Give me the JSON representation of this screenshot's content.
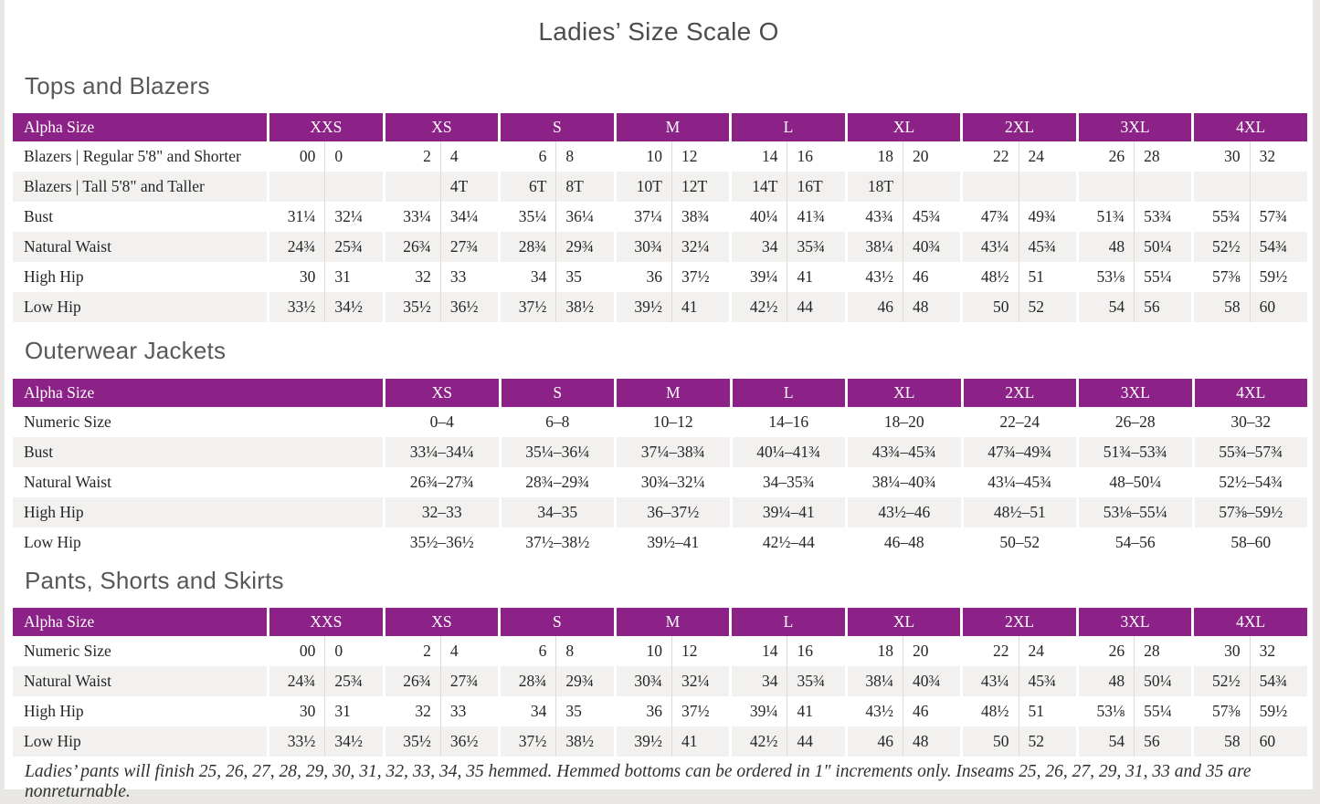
{
  "title": "Ladies’ Size Scale O",
  "footnote": "Ladies’ pants will finish 25, 26, 27, 28, 29, 30, 31, 32, 33, 34, 35 hemmed. Hemmed bottoms can be ordered in 1″ increments only. Inseams 25, 26, 27, 29, 31, 33 and 35 are nonreturnable.",
  "colors": {
    "header_purple": "#8C2287",
    "row_stripe": "#F2F1EF",
    "page_background": "#FFFFFF",
    "outer_background": "#E9E7E4",
    "heading_text": "#585858",
    "table_text": "#262626"
  },
  "tables": [
    {
      "section": "Tops and Blazers",
      "layout": "paired",
      "header_label": "Alpha Size",
      "columns": [
        "XXS",
        "XS",
        "S",
        "M",
        "L",
        "XL",
        "2XL",
        "3XL",
        "4XL"
      ],
      "rows": [
        {
          "label": "Blazers | Regular 5'8\" and Shorter",
          "values": [
            [
              "00",
              "0"
            ],
            [
              "2",
              "4"
            ],
            [
              "6",
              "8"
            ],
            [
              "10",
              "12"
            ],
            [
              "14",
              "16"
            ],
            [
              "18",
              "20"
            ],
            [
              "22",
              "24"
            ],
            [
              "26",
              "28"
            ],
            [
              "30",
              "32"
            ]
          ]
        },
        {
          "label": "Blazers | Tall 5'8\" and Taller",
          "values": [
            [
              "",
              ""
            ],
            [
              "",
              "4T"
            ],
            [
              "6T",
              "8T"
            ],
            [
              "10T",
              "12T"
            ],
            [
              "14T",
              "16T"
            ],
            [
              "18T",
              ""
            ],
            [
              "",
              ""
            ],
            [
              "",
              ""
            ],
            [
              "",
              ""
            ]
          ]
        },
        {
          "label": "Bust",
          "values": [
            [
              "31¼",
              "32¼"
            ],
            [
              "33¼",
              "34¼"
            ],
            [
              "35¼",
              "36¼"
            ],
            [
              "37¼",
              "38¾"
            ],
            [
              "40¼",
              "41¾"
            ],
            [
              "43¾",
              "45¾"
            ],
            [
              "47¾",
              "49¾"
            ],
            [
              "51¾",
              "53¾"
            ],
            [
              "55¾",
              "57¾"
            ]
          ]
        },
        {
          "label": "Natural Waist",
          "values": [
            [
              "24¾",
              "25¾"
            ],
            [
              "26¾",
              "27¾"
            ],
            [
              "28¾",
              "29¾"
            ],
            [
              "30¾",
              "32¼"
            ],
            [
              "34",
              "35¾"
            ],
            [
              "38¼",
              "40¾"
            ],
            [
              "43¼",
              "45¾"
            ],
            [
              "48",
              "50¼"
            ],
            [
              "52½",
              "54¾"
            ]
          ]
        },
        {
          "label": "High Hip",
          "values": [
            [
              "30",
              "31"
            ],
            [
              "32",
              "33"
            ],
            [
              "34",
              "35"
            ],
            [
              "36",
              "37½"
            ],
            [
              "39¼",
              "41"
            ],
            [
              "43½",
              "46"
            ],
            [
              "48½",
              "51"
            ],
            [
              "53⅛",
              "55¼"
            ],
            [
              "57⅜",
              "59½"
            ]
          ]
        },
        {
          "label": "Low Hip",
          "values": [
            [
              "33½",
              "34½"
            ],
            [
              "35½",
              "36½"
            ],
            [
              "37½",
              "38½"
            ],
            [
              "39½",
              "41"
            ],
            [
              "42½",
              "44"
            ],
            [
              "46",
              "48"
            ],
            [
              "50",
              "52"
            ],
            [
              "54",
              "56"
            ],
            [
              "58",
              "60"
            ]
          ]
        }
      ]
    },
    {
      "section": "Outerwear Jackets",
      "layout": "single",
      "header_label": "Alpha Size",
      "columns": [
        "XS",
        "S",
        "M",
        "L",
        "XL",
        "2XL",
        "3XL",
        "4XL"
      ],
      "rows": [
        {
          "label": "Numeric Size",
          "values": [
            "0–4",
            "6–8",
            "10–12",
            "14–16",
            "18–20",
            "22–24",
            "26–28",
            "30–32"
          ]
        },
        {
          "label": "Bust",
          "values": [
            "33¼–34¼",
            "35¼–36¼",
            "37¼–38¾",
            "40¼–41¾",
            "43¾–45¾",
            "47¾–49¾",
            "51¾–53¾",
            "55¾–57¾"
          ]
        },
        {
          "label": "Natural Waist",
          "values": [
            "26¾–27¾",
            "28¾–29¾",
            "30¾–32¼",
            "34–35¾",
            "38¼–40¾",
            "43¼–45¾",
            "48–50¼",
            "52½–54¾"
          ]
        },
        {
          "label": "High Hip",
          "values": [
            "32–33",
            "34–35",
            "36–37½",
            "39¼–41",
            "43½–46",
            "48½–51",
            "53⅛–55¼",
            "57⅜–59½"
          ]
        },
        {
          "label": "Low Hip",
          "values": [
            "35½–36½",
            "37½–38½",
            "39½–41",
            "42½–44",
            "46–48",
            "50–52",
            "54–56",
            "58–60"
          ]
        }
      ]
    },
    {
      "section": "Pants, Shorts and Skirts",
      "layout": "paired",
      "header_label": "Alpha Size",
      "columns": [
        "XXS",
        "XS",
        "S",
        "M",
        "L",
        "XL",
        "2XL",
        "3XL",
        "4XL"
      ],
      "rows": [
        {
          "label": "Numeric Size",
          "values": [
            [
              "00",
              "0"
            ],
            [
              "2",
              "4"
            ],
            [
              "6",
              "8"
            ],
            [
              "10",
              "12"
            ],
            [
              "14",
              "16"
            ],
            [
              "18",
              "20"
            ],
            [
              "22",
              "24"
            ],
            [
              "26",
              "28"
            ],
            [
              "30",
              "32"
            ]
          ]
        },
        {
          "label": "Natural Waist",
          "values": [
            [
              "24¾",
              "25¾"
            ],
            [
              "26¾",
              "27¾"
            ],
            [
              "28¾",
              "29¾"
            ],
            [
              "30¾",
              "32¼"
            ],
            [
              "34",
              "35¾"
            ],
            [
              "38¼",
              "40¾"
            ],
            [
              "43¼",
              "45¾"
            ],
            [
              "48",
              "50¼"
            ],
            [
              "52½",
              "54¾"
            ]
          ]
        },
        {
          "label": "High Hip",
          "values": [
            [
              "30",
              "31"
            ],
            [
              "32",
              "33"
            ],
            [
              "34",
              "35"
            ],
            [
              "36",
              "37½"
            ],
            [
              "39¼",
              "41"
            ],
            [
              "43½",
              "46"
            ],
            [
              "48½",
              "51"
            ],
            [
              "53⅛",
              "55¼"
            ],
            [
              "57⅜",
              "59½"
            ]
          ]
        },
        {
          "label": "Low Hip",
          "values": [
            [
              "33½",
              "34½"
            ],
            [
              "35½",
              "36½"
            ],
            [
              "37½",
              "38½"
            ],
            [
              "39½",
              "41"
            ],
            [
              "42½",
              "44"
            ],
            [
              "46",
              "48"
            ],
            [
              "50",
              "52"
            ],
            [
              "54",
              "56"
            ],
            [
              "58",
              "60"
            ]
          ]
        }
      ]
    }
  ]
}
